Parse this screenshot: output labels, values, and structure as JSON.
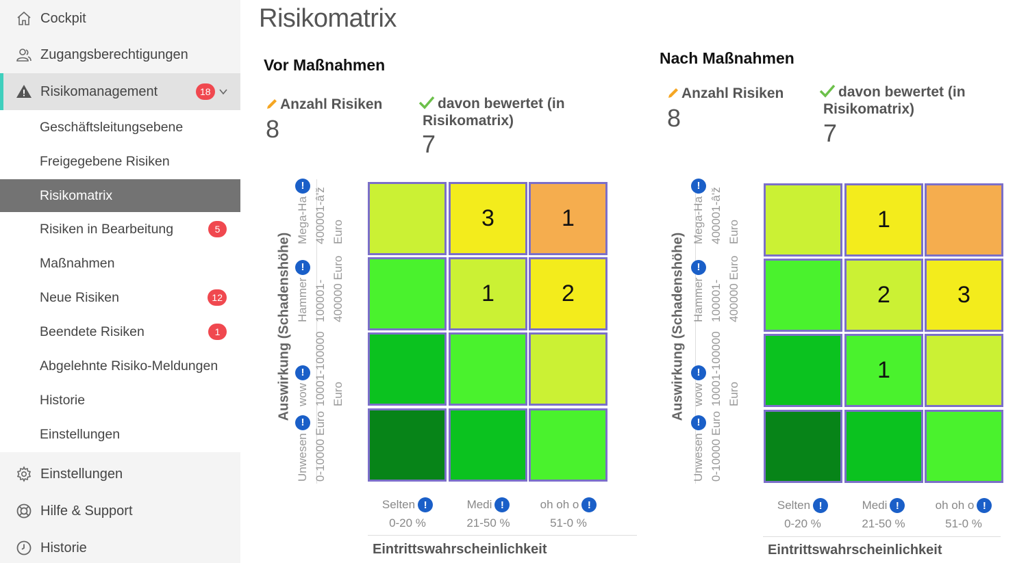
{
  "sidebar": {
    "top_items": [
      {
        "label": "Cockpit",
        "icon": "home-icon"
      },
      {
        "label": "Zugangsberechtigungen",
        "icon": "users-icon"
      },
      {
        "label": "Risikomanagement",
        "icon": "warning-icon",
        "badge": "18"
      }
    ],
    "sub_items": [
      {
        "label": "Geschäftsleitungsebene"
      },
      {
        "label": "Freigegebene Risiken"
      },
      {
        "label": "Risikomatrix"
      },
      {
        "label": "Risiken in Bearbeitung",
        "badge": "5"
      },
      {
        "label": "Maßnahmen"
      },
      {
        "label": "Neue Risiken",
        "badge": "12"
      },
      {
        "label": "Beendete Risiken",
        "badge": "1"
      },
      {
        "label": "Abgelehnte Risiko-Meldungen"
      },
      {
        "label": "Historie"
      },
      {
        "label": "Einstellungen"
      }
    ],
    "bottom_items": [
      {
        "label": "Einstellungen",
        "icon": "gear-icon"
      },
      {
        "label": "Hilfe & Support",
        "icon": "lifebuoy-icon"
      },
      {
        "label": "Historie",
        "icon": "clock-icon"
      }
    ]
  },
  "page": {
    "title": "Risikomatrix"
  },
  "matrix_common": {
    "y_axis_title": "Auswirkung (Schadenshöhe)",
    "x_axis_title": "Eintrittswahrscheinlichkeit",
    "info_glyph": "!",
    "y_rows": [
      {
        "name": "Mega-Ha",
        "range": "400001-â'ž",
        "unit": "Euro"
      },
      {
        "name": "Hammer",
        "range": "100001-",
        "unit": "400000 Euro"
      },
      {
        "name": "wow",
        "range": "10001-100000",
        "unit": "Euro"
      },
      {
        "name": "Unwesen",
        "range": "0-10000 Euro",
        "unit": ""
      }
    ],
    "x_cols": [
      {
        "name": "Selten",
        "range": "0-20 %"
      },
      {
        "name": "Medi",
        "range": "21-50 %"
      },
      {
        "name": "oh oh o",
        "range": "51-0 %"
      }
    ],
    "colors": [
      [
        "#cbf134",
        "#f3ec1c",
        "#f5ad4e"
      ],
      [
        "#4af22d",
        "#cbf134",
        "#f3ec1c"
      ],
      [
        "#0bc21f",
        "#4af22d",
        "#cbf134"
      ],
      [
        "#078418",
        "#0bc21f",
        "#4af22d"
      ]
    ]
  },
  "before": {
    "title": "Vor Maßnahmen",
    "count_label": "Anzahl Risiken",
    "count_value": "8",
    "rated_label_1": "davon bewertet (in",
    "rated_label_2": "Risikomatrix)",
    "rated_value": "7",
    "cells": [
      [
        "",
        "3",
        "1"
      ],
      [
        "",
        "1",
        "2"
      ],
      [
        "",
        "",
        ""
      ],
      [
        "",
        "",
        ""
      ]
    ]
  },
  "after": {
    "title": "Nach Maßnahmen",
    "count_label": "Anzahl Risiken",
    "count_value": "8",
    "rated_label_1": "davon bewertet (in",
    "rated_label_2": "Risikomatrix)",
    "rated_value": "7",
    "cells": [
      [
        "",
        "1",
        ""
      ],
      [
        "",
        "2",
        "3"
      ],
      [
        "",
        "1",
        ""
      ],
      [
        "",
        "",
        ""
      ]
    ]
  }
}
